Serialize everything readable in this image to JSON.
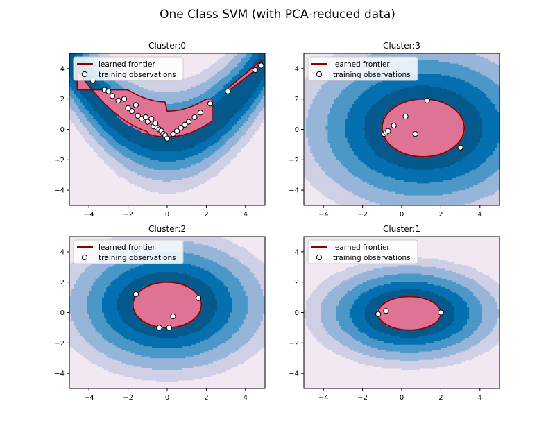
{
  "figure": {
    "title": "One Class SVM (with PCA-reduced data)"
  },
  "colors": {
    "level_1": "#f1e8f2",
    "level_2": "#cfcfe5",
    "level_3": "#96b5d9",
    "level_4": "#4b97c8",
    "level_5": "#0570b0",
    "level_6": "#045a8d",
    "inlier_fill": "#de7394",
    "frontier": "#8b0000",
    "point_face": "#ffffff",
    "point_edge": "#000000"
  },
  "legend": {
    "frontier_label": "learned frontier",
    "points_label": "training observations"
  },
  "chart_data": [
    {
      "type": "scatter",
      "title": "Cluster:0",
      "xlim": [
        -5,
        5
      ],
      "ylim": [
        -5,
        5
      ],
      "xticks": [
        -4,
        -2,
        0,
        2,
        4
      ],
      "yticks": [
        -4,
        -2,
        0,
        2,
        4
      ],
      "x_tick_labels": [
        "−4",
        "−2",
        "0",
        "2",
        "4"
      ],
      "y_tick_labels": [
        "−4",
        "−2",
        "0",
        "2",
        "4"
      ],
      "legend_position": "top-left",
      "contour": "valley",
      "points": [
        [
          -3.8,
          3.2
        ],
        [
          -3.2,
          2.6
        ],
        [
          -3.0,
          2.5
        ],
        [
          -2.8,
          2.2
        ],
        [
          -2.5,
          1.9
        ],
        [
          -2.2,
          2.0
        ],
        [
          -2.0,
          1.4
        ],
        [
          -1.8,
          1.2
        ],
        [
          -1.6,
          1.6
        ],
        [
          -1.5,
          0.9
        ],
        [
          -1.3,
          0.7
        ],
        [
          -1.1,
          0.8
        ],
        [
          -1.0,
          0.5
        ],
        [
          -0.8,
          0.7
        ],
        [
          -0.7,
          0.2
        ],
        [
          -0.6,
          0.4
        ],
        [
          -0.5,
          0.1
        ],
        [
          -0.4,
          0.0
        ],
        [
          -0.3,
          -0.1
        ],
        [
          -0.2,
          -0.3
        ],
        [
          -0.1,
          -0.4
        ],
        [
          0.0,
          -0.6
        ],
        [
          0.3,
          -0.3
        ],
        [
          0.5,
          -0.1
        ],
        [
          0.7,
          0.1
        ],
        [
          0.9,
          0.3
        ],
        [
          1.1,
          0.5
        ],
        [
          1.4,
          0.8
        ],
        [
          1.7,
          1.1
        ],
        [
          2.2,
          1.7
        ],
        [
          3.1,
          2.5
        ],
        [
          4.5,
          3.9
        ],
        [
          4.8,
          4.2
        ]
      ]
    },
    {
      "type": "scatter",
      "title": "Cluster:3",
      "xlim": [
        -5,
        5
      ],
      "ylim": [
        -5,
        5
      ],
      "xticks": [
        -4,
        -2,
        0,
        2,
        4
      ],
      "yticks": [
        -4,
        -2,
        0,
        2,
        4
      ],
      "x_tick_labels": [
        "−4",
        "−2",
        "0",
        "2",
        "4"
      ],
      "y_tick_labels": [
        "−4",
        "−2",
        "0",
        "2",
        "4"
      ],
      "legend_position": "top-left",
      "contour": "blob",
      "center": [
        1.1,
        0.1
      ],
      "frontier_radii": [
        2.1,
        1.9
      ],
      "points": [
        [
          -0.9,
          -0.3
        ],
        [
          -0.8,
          -0.2
        ],
        [
          -0.7,
          -0.1
        ],
        [
          -0.4,
          0.25
        ],
        [
          0.2,
          0.85
        ],
        [
          0.7,
          -0.3
        ],
        [
          1.3,
          1.9
        ],
        [
          3.0,
          -1.2
        ]
      ]
    },
    {
      "type": "scatter",
      "title": "Cluster:2",
      "xlim": [
        -5,
        5
      ],
      "ylim": [
        -5,
        5
      ],
      "xticks": [
        -4,
        -2,
        0,
        2,
        4
      ],
      "yticks": [
        -4,
        -2,
        0,
        2,
        4
      ],
      "x_tick_labels": [
        "−4",
        "−2",
        "0",
        "2",
        "4"
      ],
      "y_tick_labels": [
        "−4",
        "−2",
        "0",
        "2",
        "4"
      ],
      "legend_position": "top-left",
      "contour": "blob",
      "center": [
        0.0,
        0.5
      ],
      "frontier_radii": [
        1.75,
        1.5
      ],
      "points": [
        [
          -1.6,
          1.2
        ],
        [
          -0.4,
          -1.0
        ],
        [
          0.1,
          -1.0
        ],
        [
          0.3,
          -0.25
        ],
        [
          1.6,
          0.95
        ]
      ]
    },
    {
      "type": "scatter",
      "title": "Cluster:1",
      "xlim": [
        -5,
        5
      ],
      "ylim": [
        -5,
        5
      ],
      "xticks": [
        -4,
        -2,
        0,
        2,
        4
      ],
      "yticks": [
        -4,
        -2,
        0,
        2,
        4
      ],
      "x_tick_labels": [
        "−4",
        "−2",
        "0",
        "2",
        "4"
      ],
      "y_tick_labels": [
        "−4",
        "−2",
        "0",
        "2",
        "4"
      ],
      "legend_position": "top-left",
      "contour": "blob",
      "center": [
        0.4,
        -0.05
      ],
      "frontier_radii": [
        1.6,
        1.1
      ],
      "points": [
        [
          -1.2,
          -0.1
        ],
        [
          -0.8,
          0.1
        ],
        [
          2.0,
          0.0
        ]
      ]
    }
  ]
}
